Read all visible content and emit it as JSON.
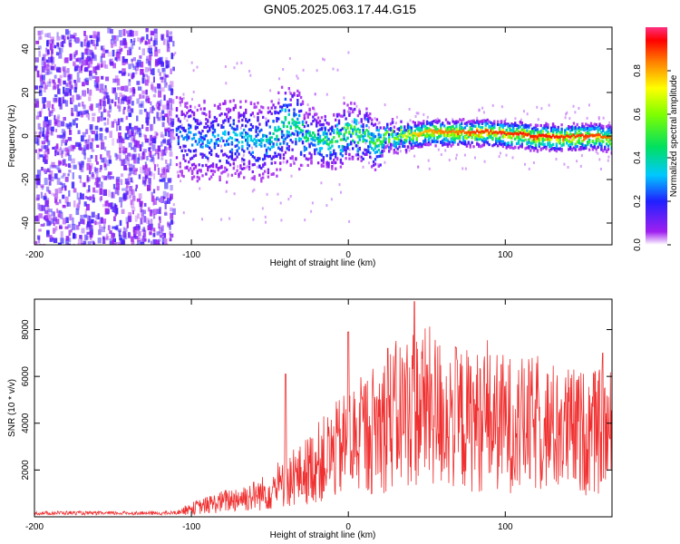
{
  "title": "GN05.2025.063.17.44.G15",
  "chart_data": [
    {
      "type": "heatmap",
      "name": "spectrogram",
      "xlabel": "Height of straight line (km)",
      "ylabel": "Frequency (Hz)",
      "xlim": [
        -200,
        168
      ],
      "ylim": [
        -50,
        50
      ],
      "xticks": [
        "-200",
        "-100",
        "0",
        "100"
      ],
      "yticks": [
        "-40",
        "-20",
        "0",
        "20",
        "40"
      ],
      "colorbar": {
        "label": "Normalized spectral amplitude",
        "range": [
          0,
          1
        ],
        "ticks": [
          "0.0",
          "0.2",
          "0.4",
          "0.6",
          "0.8"
        ]
      },
      "ridge": {
        "x": [
          -110,
          -100,
          -90,
          -80,
          -70,
          -60,
          -50,
          -40,
          -30,
          -20,
          -10,
          0,
          10,
          20,
          30,
          40,
          50,
          60,
          70,
          80,
          90,
          100,
          110,
          120,
          130,
          140,
          150,
          160,
          168
        ],
        "freq": [
          0,
          0,
          -3,
          -1,
          0,
          -3,
          0,
          6,
          3,
          -3,
          -1,
          2,
          0,
          -1,
          0,
          1,
          2,
          2,
          2,
          2,
          2,
          1,
          1,
          0,
          0,
          0,
          0,
          0,
          -1
        ],
        "amplitude": [
          0.25,
          0.3,
          0.3,
          0.32,
          0.35,
          0.35,
          0.4,
          0.45,
          0.45,
          0.45,
          0.5,
          0.55,
          0.5,
          0.55,
          0.6,
          0.75,
          0.8,
          0.85,
          0.85,
          0.9,
          0.9,
          0.9,
          0.92,
          0.92,
          0.92,
          0.9,
          0.9,
          0.88,
          0.85
        ]
      }
    },
    {
      "type": "line",
      "name": "snr",
      "xlabel": "Height of straight line (km)",
      "ylabel": "SNR (10 * v/v)",
      "xlim": [
        -200,
        168
      ],
      "ylim": [
        0,
        9300
      ],
      "xticks": [
        "-200",
        "-100",
        "0",
        "100"
      ],
      "yticks": [
        "2000",
        "4000",
        "6000",
        "8000"
      ],
      "color": "#f03030",
      "series": [
        {
          "x": [
            -200,
            -180,
            -160,
            -140,
            -120,
            -110,
            -100,
            -90,
            -80,
            -70,
            -60,
            -50,
            -40,
            -30,
            -20,
            -10,
            0,
            10,
            20,
            30,
            40,
            50,
            60,
            70,
            80,
            90,
            100,
            110,
            120,
            130,
            140,
            150,
            160,
            168
          ],
          "y": [
            150,
            170,
            150,
            160,
            150,
            170,
            350,
            500,
            650,
            800,
            900,
            1100,
            1400,
            1800,
            2300,
            2700,
            3200,
            3500,
            3900,
            4300,
            4700,
            4700,
            4400,
            4200,
            4100,
            4100,
            4000,
            3900,
            3900,
            3800,
            3700,
            3600,
            3600,
            3600
          ],
          "peaks": [
            {
              "x": -40,
              "y": 6100
            },
            {
              "x": 0,
              "y": 7900
            },
            {
              "x": 25,
              "y": 7200
            },
            {
              "x": 42,
              "y": 9200
            },
            {
              "x": 53,
              "y": 6100
            },
            {
              "x": 162,
              "y": 7000
            }
          ]
        }
      ]
    }
  ]
}
